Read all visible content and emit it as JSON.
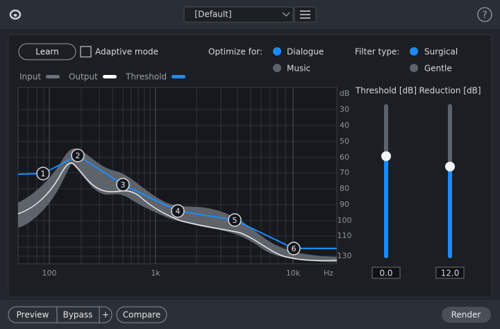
{
  "header": {
    "preset": "[Default]",
    "help": "?"
  },
  "controls": {
    "learn": "Learn",
    "adaptive_mode": "Adaptive mode",
    "optimize_label": "Optimize for:",
    "optimize_options": [
      "Dialogue",
      "Music"
    ],
    "filter_label": "Filter type:",
    "filter_options": [
      "Surgical",
      "Gentle"
    ]
  },
  "legend": [
    "Input",
    "Output",
    "Threshold"
  ],
  "graph": {
    "db_labels": [
      "dB",
      "30",
      "40",
      "50",
      "60",
      "70",
      "80",
      "90",
      "100",
      "110",
      "130"
    ],
    "freq_labels": [
      "100",
      "1k",
      "10k",
      "Hz"
    ],
    "nodes": [
      "1",
      "2",
      "3",
      "4",
      "5",
      "6"
    ]
  },
  "sliders": [
    {
      "label": "Threshold [dB]",
      "value": "0.0"
    },
    {
      "label": "Reduction [dB]",
      "value": "12.0"
    }
  ],
  "footer": {
    "preview": "Preview",
    "bypass": "Bypass",
    "plus": "+",
    "compare": "Compare",
    "render": "Render"
  }
}
